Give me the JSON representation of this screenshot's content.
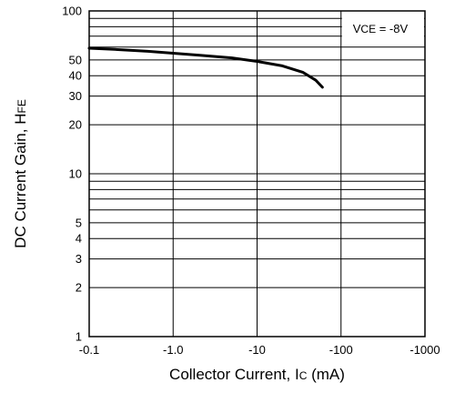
{
  "chart_data": {
    "type": "line",
    "x_scale": "log",
    "y_scale": "log",
    "xlim": [
      -0.1,
      -1000
    ],
    "ylim": [
      1,
      100
    ],
    "x_ticks": [
      "-0.1",
      "-1.0",
      "-10",
      "-100",
      "-1000"
    ],
    "y_ticks": [
      "1",
      "2",
      "3",
      "4",
      "5",
      "10",
      "20",
      "30",
      "40",
      "50",
      "100"
    ],
    "grid": true,
    "xlabel": {
      "main": "Collector Current, I",
      "sub": "C",
      "unit": " (mA)"
    },
    "ylabel": {
      "main": "DC Current Gain, H",
      "sub": "FE"
    },
    "annotation": {
      "main": "V",
      "sub": "CE",
      "rest": " = -8V"
    },
    "series": [
      {
        "color": "#000000",
        "x": [
          -0.1,
          -0.2,
          -0.5,
          -1.0,
          -2.0,
          -5.0,
          -10,
          -20,
          -35,
          -50,
          -60
        ],
        "y": [
          59,
          58,
          56.5,
          55,
          53.5,
          51.5,
          49,
          46,
          42,
          37.5,
          34
        ]
      }
    ]
  }
}
